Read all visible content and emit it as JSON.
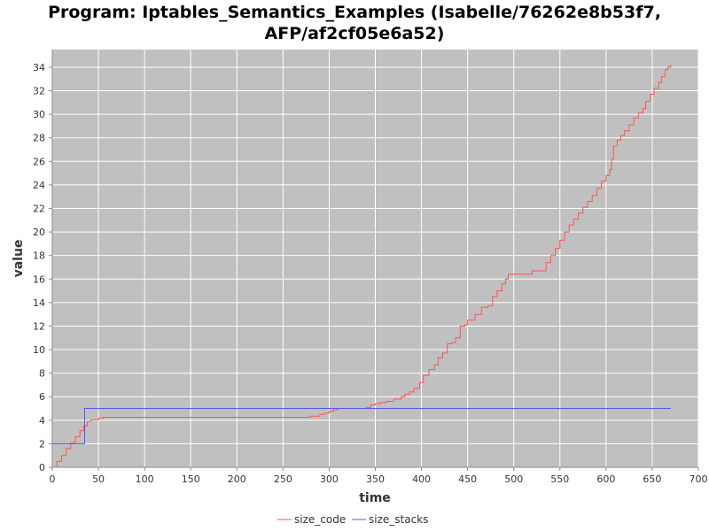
{
  "chart_data": {
    "type": "line",
    "title_lines": [
      "Program: Iptables_Semantics_Examples (Isabelle/76262e8b53f7,",
      "AFP/af2cf05e6a52)"
    ],
    "xlabel": "time",
    "ylabel": "value",
    "xlim": [
      0,
      700
    ],
    "ylim": [
      0,
      35.5
    ],
    "x_ticks": [
      0,
      50,
      100,
      150,
      200,
      250,
      300,
      350,
      400,
      450,
      500,
      550,
      600,
      650,
      700
    ],
    "y_ticks": [
      0,
      2,
      4,
      6,
      8,
      10,
      12,
      14,
      16,
      18,
      20,
      22,
      24,
      26,
      28,
      30,
      32,
      34
    ],
    "grid": true,
    "legend_position": "bottom",
    "background_color": "#c0c0c0",
    "series": [
      {
        "name": "size_code",
        "color": "#ff5555",
        "step": true,
        "points": [
          [
            0,
            0
          ],
          [
            5,
            0.5
          ],
          [
            10,
            1.0
          ],
          [
            15,
            1.6
          ],
          [
            20,
            2.1
          ],
          [
            25,
            2.6
          ],
          [
            30,
            3.1
          ],
          [
            34,
            3.5
          ],
          [
            38,
            3.9
          ],
          [
            42,
            4.05
          ],
          [
            50,
            4.15
          ],
          [
            55,
            4.25
          ],
          [
            100,
            4.25
          ],
          [
            200,
            4.25
          ],
          [
            275,
            4.25
          ],
          [
            280,
            4.35
          ],
          [
            290,
            4.5
          ],
          [
            295,
            4.6
          ],
          [
            300,
            4.75
          ],
          [
            305,
            4.9
          ],
          [
            310,
            5.0
          ],
          [
            340,
            5.1
          ],
          [
            345,
            5.3
          ],
          [
            350,
            5.4
          ],
          [
            355,
            5.5
          ],
          [
            362,
            5.6
          ],
          [
            370,
            5.8
          ],
          [
            378,
            6.0
          ],
          [
            382,
            6.2
          ],
          [
            387,
            6.4
          ],
          [
            392,
            6.7
          ],
          [
            398,
            7.2
          ],
          [
            402,
            7.8
          ],
          [
            408,
            8.3
          ],
          [
            414,
            8.7
          ],
          [
            418,
            9.3
          ],
          [
            423,
            9.7
          ],
          [
            428,
            10.5
          ],
          [
            433,
            10.6
          ],
          [
            437,
            11.0
          ],
          [
            442,
            12.0
          ],
          [
            447,
            12.1
          ],
          [
            450,
            12.5
          ],
          [
            458,
            13.0
          ],
          [
            465,
            13.6
          ],
          [
            472,
            13.7
          ],
          [
            477,
            14.5
          ],
          [
            482,
            15.0
          ],
          [
            487,
            15.6
          ],
          [
            491,
            16.0
          ],
          [
            494,
            16.4
          ],
          [
            500,
            16.4
          ],
          [
            518,
            16.4
          ],
          [
            520,
            16.7
          ],
          [
            530,
            16.7
          ],
          [
            535,
            17.4
          ],
          [
            540,
            18.0
          ],
          [
            545,
            18.6
          ],
          [
            550,
            19.3
          ],
          [
            555,
            20.0
          ],
          [
            560,
            20.6
          ],
          [
            565,
            21.1
          ],
          [
            570,
            21.6
          ],
          [
            575,
            22.1
          ],
          [
            580,
            22.6
          ],
          [
            585,
            23.1
          ],
          [
            590,
            23.7
          ],
          [
            595,
            24.3
          ],
          [
            600,
            24.8
          ],
          [
            604,
            25.3
          ],
          [
            606,
            26.2
          ],
          [
            608,
            27.3
          ],
          [
            612,
            27.8
          ],
          [
            616,
            28.2
          ],
          [
            620,
            28.6
          ],
          [
            625,
            29.1
          ],
          [
            630,
            29.7
          ],
          [
            635,
            30.1
          ],
          [
            640,
            30.5
          ],
          [
            643,
            31.1
          ],
          [
            648,
            31.7
          ],
          [
            652,
            32.2
          ],
          [
            657,
            32.7
          ],
          [
            660,
            33.2
          ],
          [
            664,
            33.8
          ],
          [
            667,
            34.0
          ],
          [
            670,
            34.2
          ]
        ]
      },
      {
        "name": "size_stacks",
        "color": "#5555ff",
        "step": true,
        "points": [
          [
            0,
            2
          ],
          [
            34,
            2
          ],
          [
            35,
            5
          ],
          [
            670,
            5
          ]
        ]
      }
    ]
  }
}
